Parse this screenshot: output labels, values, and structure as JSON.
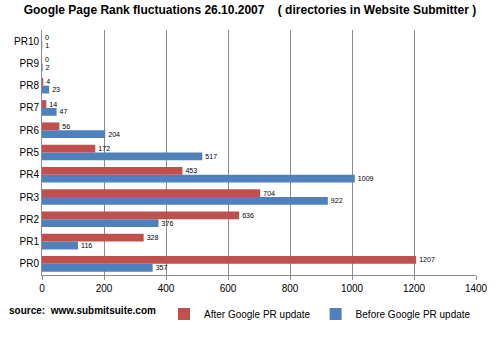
{
  "chart_data": {
    "type": "bar",
    "title": "Google Page Rank fluctuations 26.10.2007    ( directories in Website Submitter )",
    "orientation": "horizontal",
    "categories": [
      "PR0",
      "PR1",
      "PR2",
      "PR3",
      "PR4",
      "PR5",
      "PR6",
      "PR7",
      "PR8",
      "PR9",
      "PR10"
    ],
    "series": [
      {
        "name": "After Google PR update",
        "color": "#c0504d",
        "values": [
          1207,
          328,
          636,
          704,
          453,
          172,
          56,
          14,
          4,
          0,
          0
        ]
      },
      {
        "name": "Before Google PR update",
        "color": "#4f81bd",
        "values": [
          357,
          116,
          376,
          922,
          1009,
          517,
          204,
          47,
          23,
          2,
          1
        ]
      }
    ],
    "xlim": [
      0,
      1400
    ],
    "xticks": [
      0,
      200,
      400,
      600,
      800,
      1000,
      1200,
      1400
    ],
    "grid": true,
    "legend": "bottom-right",
    "data_labels": true,
    "annotations": [
      "source:  www.submitsuite.com"
    ]
  }
}
